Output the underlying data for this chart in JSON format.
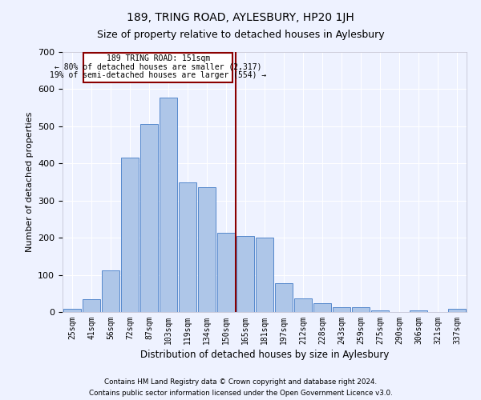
{
  "title": "189, TRING ROAD, AYLESBURY, HP20 1JH",
  "subtitle": "Size of property relative to detached houses in Aylesbury",
  "xlabel": "Distribution of detached houses by size in Aylesbury",
  "ylabel": "Number of detached properties",
  "categories": [
    "25sqm",
    "41sqm",
    "56sqm",
    "72sqm",
    "87sqm",
    "103sqm",
    "119sqm",
    "134sqm",
    "150sqm",
    "165sqm",
    "181sqm",
    "197sqm",
    "212sqm",
    "228sqm",
    "243sqm",
    "259sqm",
    "275sqm",
    "290sqm",
    "306sqm",
    "321sqm",
    "337sqm"
  ],
  "values": [
    8,
    35,
    112,
    415,
    507,
    578,
    348,
    335,
    213,
    205,
    200,
    78,
    36,
    24,
    13,
    13,
    5,
    0,
    5,
    0,
    8
  ],
  "bar_color": "#aec6e8",
  "bar_edge_color": "#5588cc",
  "ref_line_color": "#8b0000",
  "annotation_box_color": "#8b0000",
  "annotation_line1": "189 TRING ROAD: 151sqm",
  "annotation_line2": "← 80% of detached houses are smaller (2,317)",
  "annotation_line3": "19% of semi-detached houses are larger (554) →",
  "ylim": [
    0,
    700
  ],
  "yticks": [
    0,
    100,
    200,
    300,
    400,
    500,
    600,
    700
  ],
  "footer_line1": "Contains HM Land Registry data © Crown copyright and database right 2024.",
  "footer_line2": "Contains public sector information licensed under the Open Government Licence v3.0.",
  "bg_color": "#eef2ff",
  "grid_color": "#ffffff",
  "title_fontsize": 10,
  "subtitle_fontsize": 9
}
